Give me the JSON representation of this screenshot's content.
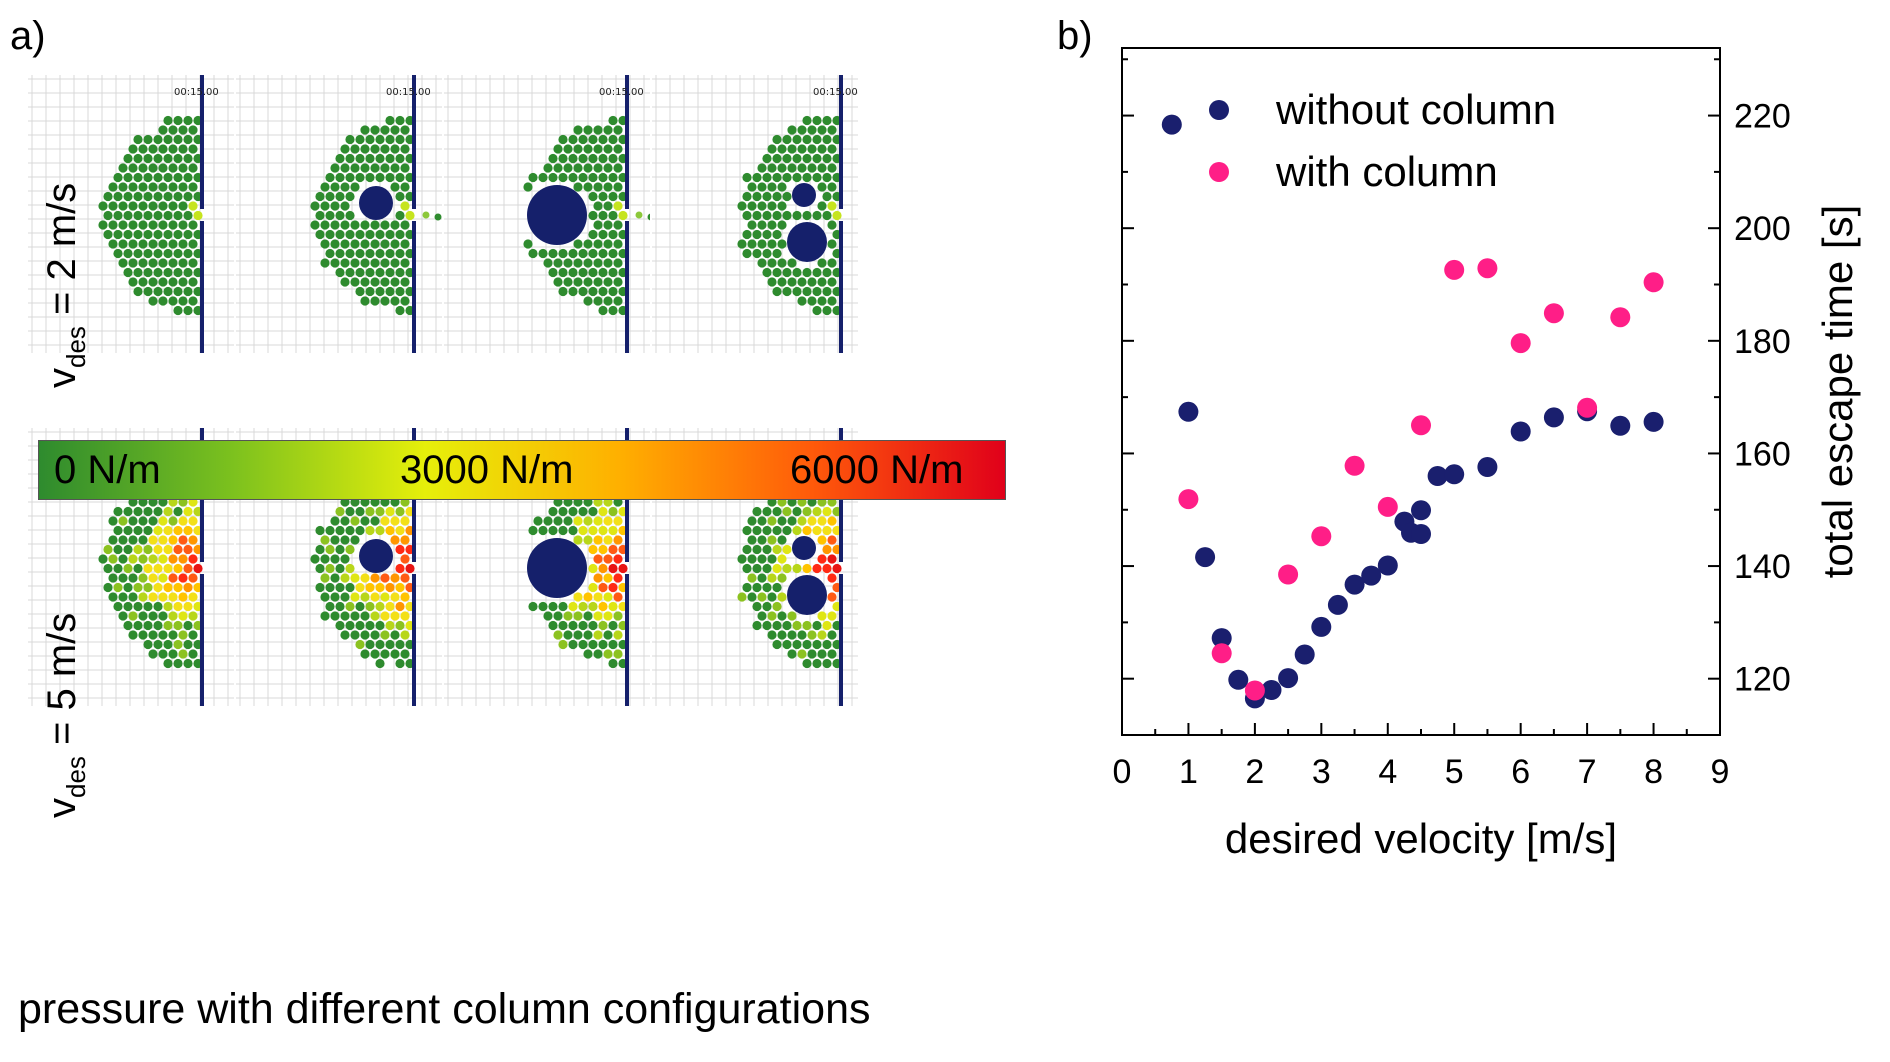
{
  "panel_a": {
    "label": "a)",
    "row_labels": {
      "top": {
        "v": "v",
        "sub": "des",
        "rest": " = 2 m/s"
      },
      "bottom": {
        "v": "v",
        "sub": "des",
        "rest": " = 5 m/s"
      }
    },
    "timestamp": "00:15.00",
    "colorbar": {
      "labels": [
        "0 N/m",
        "3000 N/m",
        "6000 N/m"
      ],
      "colors": [
        "#2e8b2e",
        "#7cc11e",
        "#e6ef0a",
        "#ffb000",
        "#ff5a0a",
        "#e0001a"
      ]
    },
    "caption": "pressure with different column configurations",
    "colors": {
      "pedestrian_low": "#2e8b2e",
      "wall": "#15206b",
      "column": "#15206b"
    }
  },
  "panel_b": {
    "label": "b)"
  },
  "chart_data": {
    "type": "scatter",
    "xlabel": "desired velocity [m/s]",
    "ylabel": "total escape time [s]",
    "xlim": [
      0,
      9
    ],
    "ylim": [
      110,
      232
    ],
    "x_ticks": [
      0,
      1,
      2,
      3,
      4,
      5,
      6,
      7,
      8,
      9
    ],
    "y_ticks": [
      120,
      140,
      160,
      180,
      200,
      220
    ],
    "y_axis_side": "right",
    "legend_position": "top",
    "series": [
      {
        "name": "without column",
        "color": "#1a1f6e",
        "points": [
          [
            0.75,
            218.4
          ],
          [
            1.0,
            167.4
          ],
          [
            1.25,
            141.6
          ],
          [
            1.5,
            127.2
          ],
          [
            1.75,
            119.8
          ],
          [
            2.0,
            116.5
          ],
          [
            2.25,
            118.0
          ],
          [
            2.5,
            120.1
          ],
          [
            2.75,
            124.3
          ],
          [
            3.0,
            129.2
          ],
          [
            3.25,
            133.1
          ],
          [
            3.5,
            136.7
          ],
          [
            3.75,
            138.3
          ],
          [
            4.0,
            140.1
          ],
          [
            4.25,
            147.9
          ],
          [
            4.35,
            145.9
          ],
          [
            4.5,
            149.9
          ],
          [
            4.5,
            145.7
          ],
          [
            4.75,
            156.0
          ],
          [
            5.0,
            156.3
          ],
          [
            5.5,
            157.6
          ],
          [
            6.0,
            163.9
          ],
          [
            6.5,
            166.4
          ],
          [
            7.0,
            167.5
          ],
          [
            7.5,
            164.9
          ],
          [
            8.0,
            165.6
          ]
        ]
      },
      {
        "name": "with column",
        "color": "#ff1e87",
        "points": [
          [
            1.0,
            151.9
          ],
          [
            1.5,
            124.5
          ],
          [
            2.0,
            117.9
          ],
          [
            2.5,
            138.5
          ],
          [
            3.0,
            145.3
          ],
          [
            3.5,
            157.8
          ],
          [
            4.0,
            150.5
          ],
          [
            4.5,
            165.0
          ],
          [
            5.0,
            192.6
          ],
          [
            5.5,
            192.9
          ],
          [
            6.0,
            179.6
          ],
          [
            6.5,
            184.9
          ],
          [
            7.0,
            168.1
          ],
          [
            7.5,
            184.2
          ],
          [
            8.0,
            190.4
          ]
        ]
      }
    ]
  }
}
